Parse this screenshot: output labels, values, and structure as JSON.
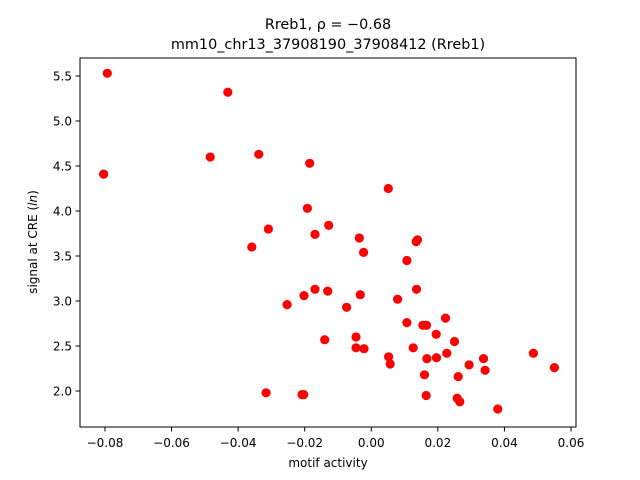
{
  "chart_data": {
    "type": "scatter",
    "title_line1": "Rreb1, ρ = −0.68",
    "title_line2": "mm10_chr13_37908190_37908412 (Rreb1)",
    "xlabel": "motif activity",
    "ylabel_prefix": "signal at CRE (",
    "ylabel_italic": "ln",
    "ylabel_suffix": ")",
    "xlim": [
      -0.0875,
      0.0615
    ],
    "ylim": [
      1.6,
      5.7
    ],
    "xticks": [
      -0.08,
      -0.06,
      -0.04,
      -0.02,
      0.0,
      0.02,
      0.04,
      0.06
    ],
    "xtick_labels": [
      "−0.08",
      "−0.06",
      "−0.04",
      "−0.02",
      "0.00",
      "0.02",
      "0.04",
      "0.06"
    ],
    "yticks": [
      2.0,
      2.5,
      3.0,
      3.5,
      4.0,
      4.5,
      5.0,
      5.5
    ],
    "ytick_labels": [
      "2.0",
      "2.5",
      "3.0",
      "3.5",
      "4.0",
      "4.5",
      "5.0",
      "5.5"
    ],
    "grid": false,
    "marker_color": "#ff0000",
    "points": [
      [
        -0.0793,
        5.53
      ],
      [
        -0.0431,
        5.32
      ],
      [
        -0.0804,
        4.41
      ],
      [
        -0.0484,
        4.6
      ],
      [
        -0.0338,
        4.63
      ],
      [
        -0.0185,
        4.53
      ],
      [
        0.0051,
        4.25
      ],
      [
        -0.0192,
        4.03
      ],
      [
        -0.0128,
        3.84
      ],
      [
        -0.0309,
        3.8
      ],
      [
        -0.0169,
        3.74
      ],
      [
        -0.0036,
        3.7
      ],
      [
        -0.0359,
        3.6
      ],
      [
        -0.0023,
        3.54
      ],
      [
        0.0139,
        3.68
      ],
      [
        0.0135,
        3.66
      ],
      [
        0.0107,
        3.45
      ],
      [
        -0.0169,
        3.13
      ],
      [
        -0.0131,
        3.11
      ],
      [
        0.0136,
        3.13
      ],
      [
        -0.0202,
        3.06
      ],
      [
        -0.0033,
        3.07
      ],
      [
        0.0079,
        3.02
      ],
      [
        -0.0253,
        2.96
      ],
      [
        -0.0074,
        2.93
      ],
      [
        0.0223,
        2.81
      ],
      [
        0.0107,
        2.76
      ],
      [
        0.0155,
        2.73
      ],
      [
        0.0166,
        2.73
      ],
      [
        0.0195,
        2.63
      ],
      [
        -0.0046,
        2.6
      ],
      [
        -0.014,
        2.57
      ],
      [
        0.025,
        2.55
      ],
      [
        -0.0046,
        2.48
      ],
      [
        -0.0022,
        2.47
      ],
      [
        0.0126,
        2.48
      ],
      [
        0.0227,
        2.42
      ],
      [
        0.0487,
        2.42
      ],
      [
        0.0052,
        2.38
      ],
      [
        0.0167,
        2.36
      ],
      [
        0.0196,
        2.37
      ],
      [
        0.0337,
        2.36
      ],
      [
        0.0057,
        2.3
      ],
      [
        0.0294,
        2.29
      ],
      [
        0.055,
        2.26
      ],
      [
        0.0342,
        2.23
      ],
      [
        0.016,
        2.18
      ],
      [
        0.0261,
        2.16
      ],
      [
        -0.0316,
        1.98
      ],
      [
        -0.0208,
        1.96
      ],
      [
        -0.0203,
        1.96
      ],
      [
        0.0165,
        1.95
      ],
      [
        0.0258,
        1.92
      ],
      [
        0.0266,
        1.88
      ],
      [
        0.038,
        1.8
      ]
    ]
  }
}
